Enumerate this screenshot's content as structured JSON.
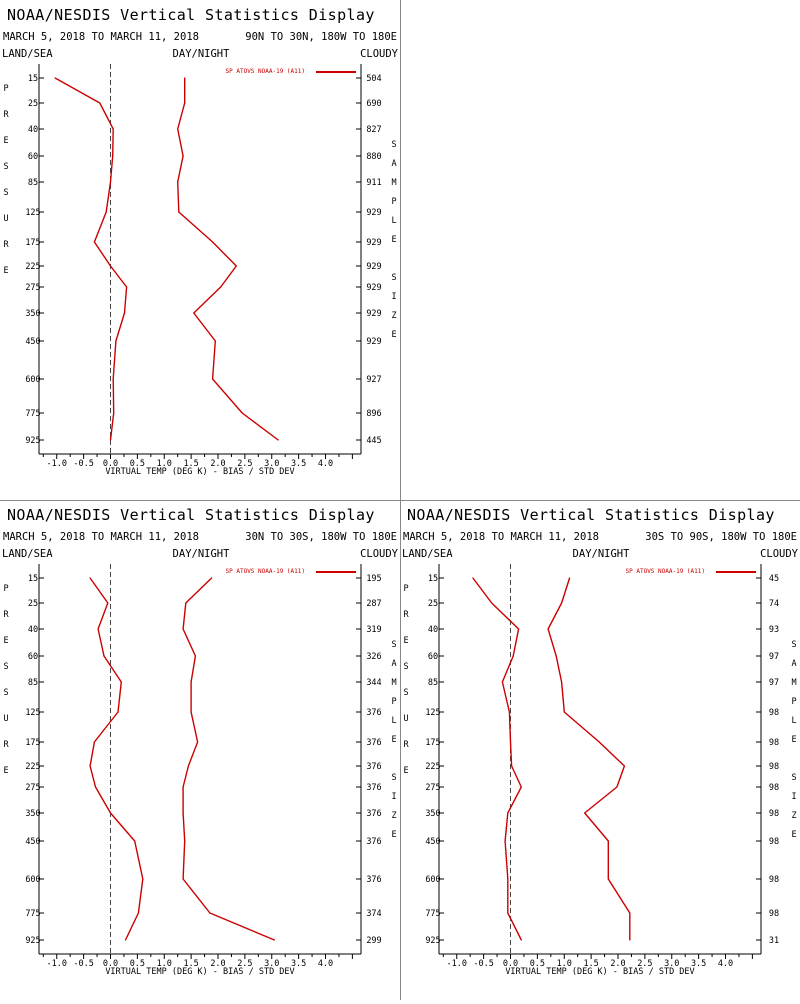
{
  "panels": [
    {
      "title": "NOAA/NESDIS Vertical Statistics Display",
      "date_range": "MARCH 5, 2018 TO MARCH 11, 2018",
      "region": "90N TO 30N, 180W TO 180E",
      "surface": "LAND/SEA",
      "time_of_day": "DAY/NIGHT",
      "sky": "CLOUDY",
      "left_axis_label": "PRESSURE",
      "right_axis_label": "SAMPLE SIZE",
      "legend": "SP ATOVS NOAA-19 (A11)",
      "xlabel": "VIRTUAL TEMP (DEG K) - BIAS / STD DEV",
      "line_color": "#cc0000",
      "zero_line_color": "#444444"
    },
    {
      "title": "NOAA/NESDIS Vertical Statistics Display",
      "date_range": "MARCH 5, 2018 TO MARCH 11, 2018",
      "region": "30N TO 30S, 180W TO 180E",
      "surface": "LAND/SEA",
      "time_of_day": "DAY/NIGHT",
      "sky": "CLOUDY",
      "left_axis_label": "PRESSURE",
      "right_axis_label": "SAMPLE SIZE",
      "legend": "SP ATOVS NOAA-19 (A11)",
      "xlabel": "VIRTUAL TEMP (DEG K) - BIAS / STD DEV",
      "line_color": "#cc0000",
      "zero_line_color": "#444444"
    },
    {
      "title": "NOAA/NESDIS Vertical Statistics Display",
      "date_range": "MARCH 5, 2018 TO MARCH 11, 2018",
      "region": "30S TO 90S, 180W TO 180E",
      "surface": "LAND/SEA",
      "time_of_day": "DAY/NIGHT",
      "sky": "CLOUDY",
      "left_axis_label": "PRESSURE",
      "right_axis_label": "SAMPLE SIZE",
      "legend": "SP ATOVS NOAA-19 (A11)",
      "xlabel": "VIRTUAL TEMP (DEG K) - BIAS / STD DEV",
      "line_color": "#cc0000",
      "zero_line_color": "#444444"
    }
  ],
  "chart_data": [
    {
      "type": "line",
      "pressure_levels": [
        "15",
        "25",
        "40",
        "60",
        "85",
        "125",
        "175",
        "225",
        "275",
        "350",
        "450",
        "600",
        "775",
        "925"
      ],
      "xlim": [
        -1.5,
        4.5
      ],
      "x_ticks": [
        "-1.0",
        "-0.5",
        "0.0",
        "0.5",
        "1.0",
        "1.5",
        "2.0",
        "2.5",
        "3.0",
        "3.5",
        "4.0"
      ],
      "series": [
        {
          "role": "bias",
          "values": [
            -1.03,
            -0.2,
            0.05,
            0.04,
            0.0,
            -0.08,
            -0.3,
            0.0,
            0.3,
            0.26,
            0.1,
            0.05,
            0.06,
            0.0
          ]
        },
        {
          "role": "std_dev",
          "values": [
            1.38,
            1.38,
            1.25,
            1.35,
            1.25,
            1.27,
            1.9,
            2.34,
            2.05,
            1.55,
            1.95,
            1.9,
            2.45,
            3.12
          ]
        }
      ],
      "sample_size": [
        "504",
        "690",
        "827",
        "880",
        "911",
        "929",
        "929",
        "929",
        "929",
        "929",
        "929",
        "927",
        "896",
        "445"
      ]
    },
    {
      "type": "line",
      "pressure_levels": [
        "15",
        "25",
        "40",
        "60",
        "85",
        "125",
        "175",
        "225",
        "275",
        "350",
        "450",
        "600",
        "775",
        "925"
      ],
      "xlim": [
        -1.5,
        4.5
      ],
      "x_ticks": [
        "-1.0",
        "-0.5",
        "0.0",
        "0.5",
        "1.0",
        "1.5",
        "2.0",
        "2.5",
        "3.0",
        "3.5",
        "4.0"
      ],
      "series": [
        {
          "role": "bias",
          "values": [
            -0.38,
            -0.05,
            -0.23,
            -0.12,
            0.2,
            0.14,
            -0.3,
            -0.38,
            -0.28,
            0.0,
            0.45,
            0.6,
            0.52,
            0.28
          ]
        },
        {
          "role": "std_dev",
          "values": [
            1.88,
            1.4,
            1.35,
            1.58,
            1.5,
            1.5,
            1.62,
            1.45,
            1.35,
            1.35,
            1.38,
            1.35,
            1.85,
            3.05
          ]
        }
      ],
      "sample_size": [
        "195",
        "287",
        "319",
        "326",
        "344",
        "376",
        "376",
        "376",
        "376",
        "376",
        "376",
        "376",
        "374",
        "299"
      ]
    },
    {
      "type": "line",
      "pressure_levels": [
        "15",
        "25",
        "40",
        "60",
        "85",
        "125",
        "175",
        "225",
        "275",
        "350",
        "450",
        "600",
        "775",
        "925"
      ],
      "xlim": [
        -1.5,
        4.5
      ],
      "x_ticks": [
        "-1.0",
        "-0.5",
        "0.0",
        "0.5",
        "1.0",
        "1.5",
        "2.0",
        "2.5",
        "3.0",
        "3.5",
        "4.0"
      ],
      "series": [
        {
          "role": "bias",
          "values": [
            -0.7,
            -0.35,
            0.15,
            0.05,
            -0.15,
            -0.02,
            0.0,
            0.02,
            0.2,
            -0.05,
            -0.1,
            -0.05,
            -0.05,
            0.2
          ]
        },
        {
          "role": "std_dev",
          "values": [
            1.1,
            0.95,
            0.7,
            0.85,
            0.95,
            1.0,
            1.65,
            2.12,
            1.98,
            1.38,
            1.82,
            1.82,
            2.22,
            2.22
          ]
        }
      ],
      "sample_size": [
        "45",
        "74",
        "93",
        "97",
        "97",
        "98",
        "98",
        "98",
        "98",
        "98",
        "98",
        "98",
        "98",
        "31"
      ]
    }
  ]
}
